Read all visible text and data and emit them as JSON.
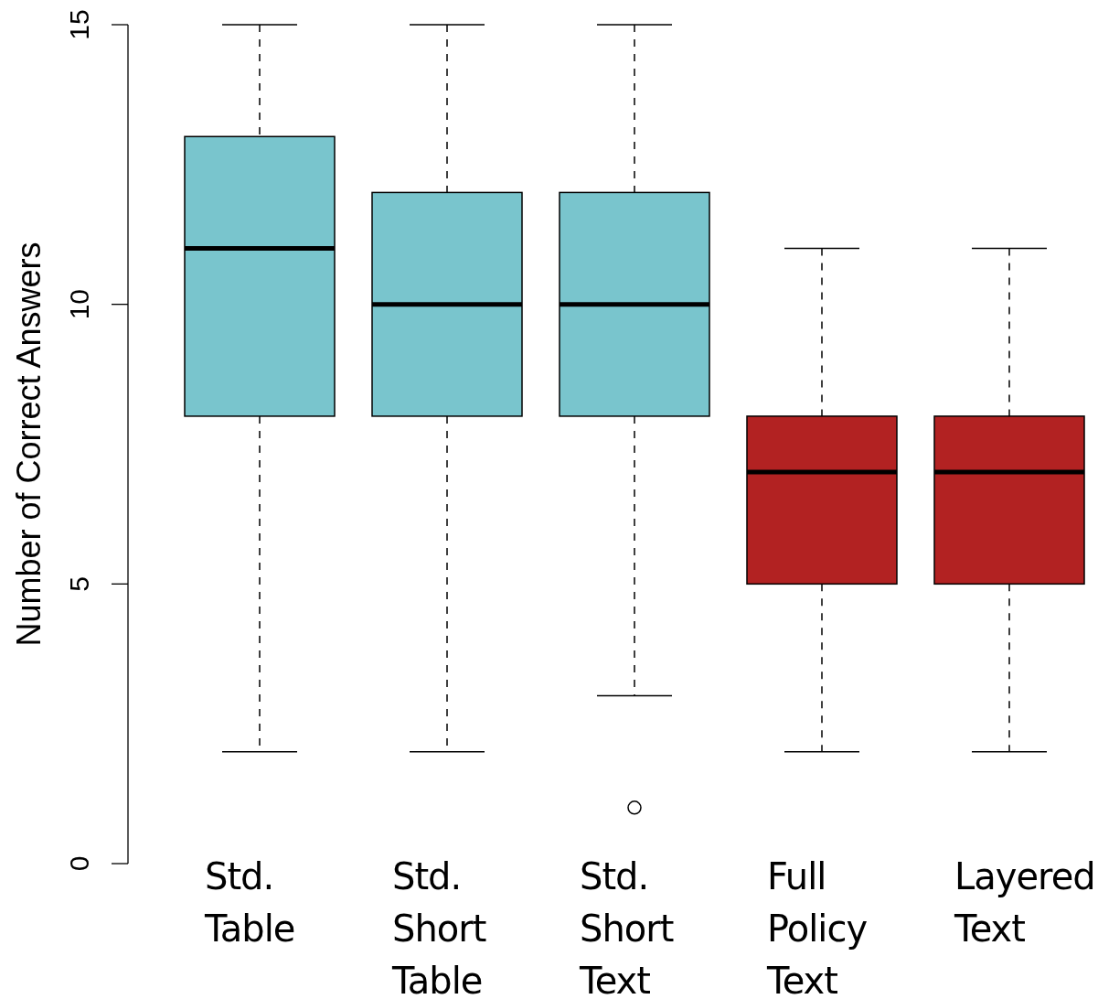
{
  "chart_data": {
    "type": "box",
    "ylabel": "Number of Correct Answers",
    "categories": [
      "Std. Table",
      "Std. Short Table",
      "Std. Short Text",
      "Full Policy Text",
      "Layered Text"
    ],
    "colors": [
      "#79c5cd",
      "#79c5cd",
      "#79c5cd",
      "#b22222",
      "#b22222"
    ],
    "boxes": [
      {
        "low": 2,
        "q1": 8,
        "median": 11,
        "q3": 13,
        "high": 15
      },
      {
        "low": 2,
        "q1": 8,
        "median": 10,
        "q3": 12,
        "high": 15
      },
      {
        "low": 3,
        "q1": 8,
        "median": 10,
        "q3": 12,
        "high": 15,
        "outliers": [
          1
        ]
      },
      {
        "low": 2,
        "q1": 5,
        "median": 7,
        "q3": 8,
        "high": 11
      },
      {
        "low": 2,
        "q1": 5,
        "median": 7,
        "q3": 8,
        "high": 11
      }
    ],
    "ylim": [
      0,
      15
    ],
    "yticks": [
      0,
      5,
      10,
      15
    ],
    "line_style": "dashed"
  }
}
